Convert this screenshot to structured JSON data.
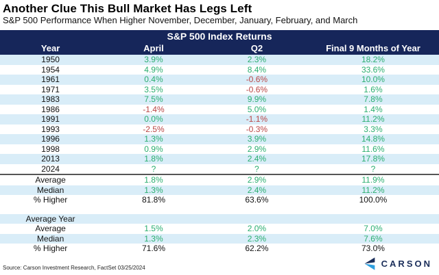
{
  "title": "Another Clue This Bull Market Has Legs Left",
  "subtitle": "S&P 500 Performance When Higher November, December, January, February, and March",
  "source": "Source: Carson Investment Research, FactSet 03/25/2024",
  "logo": {
    "text": "CARSON",
    "icon": "carson-chevron-icon"
  },
  "colors": {
    "header_navy": "#16265a",
    "row_stripe": "#d9edf8",
    "positive_green": "#2bae70",
    "negative_red": "#b94545",
    "logo_navy": "#1b2e5a",
    "logo_blue": "#2e9fdf"
  },
  "chart_data": {
    "type": "table",
    "title": "Another Clue This Bull Market Has Legs Left",
    "subtitle": "S&P 500 Performance When Higher November, December, January, February, and March",
    "band_title": "S&P 500 Index Returns",
    "columns": [
      "Year",
      "April",
      "Q2",
      "Final 9 Months of Year"
    ],
    "year_rows": [
      {
        "label": "1950",
        "cells": [
          "3.9%",
          "2.3%",
          "18.2%"
        ]
      },
      {
        "label": "1954",
        "cells": [
          "4.9%",
          "8.4%",
          "33.6%"
        ]
      },
      {
        "label": "1961",
        "cells": [
          "0.4%",
          "-0.6%",
          "10.0%"
        ]
      },
      {
        "label": "1971",
        "cells": [
          "3.5%",
          "-0.6%",
          "1.6%"
        ]
      },
      {
        "label": "1983",
        "cells": [
          "7.5%",
          "9.9%",
          "7.8%"
        ]
      },
      {
        "label": "1986",
        "cells": [
          "-1.4%",
          "5.0%",
          "1.4%"
        ]
      },
      {
        "label": "1991",
        "cells": [
          "0.0%",
          "-1.1%",
          "11.2%"
        ]
      },
      {
        "label": "1993",
        "cells": [
          "-2.5%",
          "-0.3%",
          "3.3%"
        ]
      },
      {
        "label": "1996",
        "cells": [
          "1.3%",
          "3.9%",
          "14.8%"
        ]
      },
      {
        "label": "1998",
        "cells": [
          "0.9%",
          "2.9%",
          "11.6%"
        ]
      },
      {
        "label": "2013",
        "cells": [
          "1.8%",
          "2.4%",
          "17.8%"
        ]
      },
      {
        "label": "2024",
        "cells": [
          "?",
          "?",
          "?"
        ]
      }
    ],
    "summary_rows": [
      {
        "label": "Average",
        "cells": [
          "1.8%",
          "2.9%",
          "11.9%"
        ],
        "color": "green",
        "shaded": false
      },
      {
        "label": "Median",
        "cells": [
          "1.3%",
          "2.4%",
          "11.2%"
        ],
        "color": "green",
        "shaded": true
      },
      {
        "label": "% Higher",
        "cells": [
          "81.8%",
          "63.6%",
          "100.0%"
        ],
        "color": "black",
        "shaded": false
      }
    ],
    "section_label": "Average Year",
    "average_year_rows": [
      {
        "label": "Average",
        "cells": [
          "1.5%",
          "2.0%",
          "7.0%"
        ],
        "color": "green",
        "shaded": false
      },
      {
        "label": "Median",
        "cells": [
          "1.3%",
          "2.3%",
          "7.6%"
        ],
        "color": "green",
        "shaded": true
      },
      {
        "label": "% Higher",
        "cells": [
          "71.6%",
          "62.2%",
          "73.0%"
        ],
        "color": "black",
        "shaded": false
      }
    ]
  }
}
